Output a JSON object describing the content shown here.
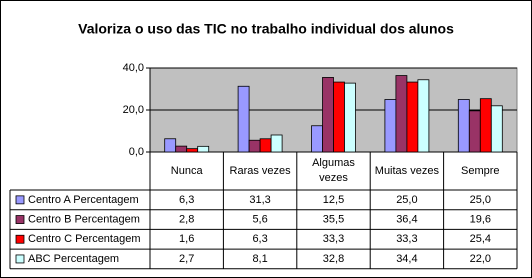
{
  "chart_data": {
    "type": "bar",
    "title": "Valoriza o uso das TIC no trabalho individual dos alunos",
    "categories": [
      "Nunca",
      "Raras vezes",
      "Algumas vezes",
      "Muitas vezes",
      "Sempre"
    ],
    "series": [
      {
        "name": "Centro A Percentagem",
        "color": "#9999ff",
        "values": [
          6.3,
          31.3,
          12.5,
          25.0,
          25.0
        ],
        "value_labels": [
          "6,3",
          "31,3",
          "12,5",
          "25,0",
          "25,0"
        ]
      },
      {
        "name": "Centro B Percentagem",
        "color": "#993366",
        "values": [
          2.8,
          5.6,
          35.5,
          36.4,
          19.6
        ],
        "value_labels": [
          "2,8",
          "5,6",
          "35,5",
          "36,4",
          "19,6"
        ]
      },
      {
        "name": "Centro C Percentagem",
        "color": "#ff0000",
        "values": [
          1.6,
          6.3,
          33.3,
          33.3,
          25.4
        ],
        "value_labels": [
          "1,6",
          "6,3",
          "33,3",
          "33,3",
          "25,4"
        ]
      },
      {
        "name": "ABC Percentagem",
        "color": "#ccffff",
        "values": [
          2.7,
          8.1,
          32.8,
          34.4,
          22.0
        ],
        "value_labels": [
          "2,7",
          "8,1",
          "32,8",
          "34,4",
          "22,0"
        ]
      }
    ],
    "ylim": [
      0,
      40
    ],
    "yticks": [
      {
        "value": 0,
        "label": "0,0"
      },
      {
        "value": 20,
        "label": "20,0"
      },
      {
        "value": 40,
        "label": "40,0"
      }
    ],
    "grid": true,
    "plot_background": "#c0c0c0"
  }
}
